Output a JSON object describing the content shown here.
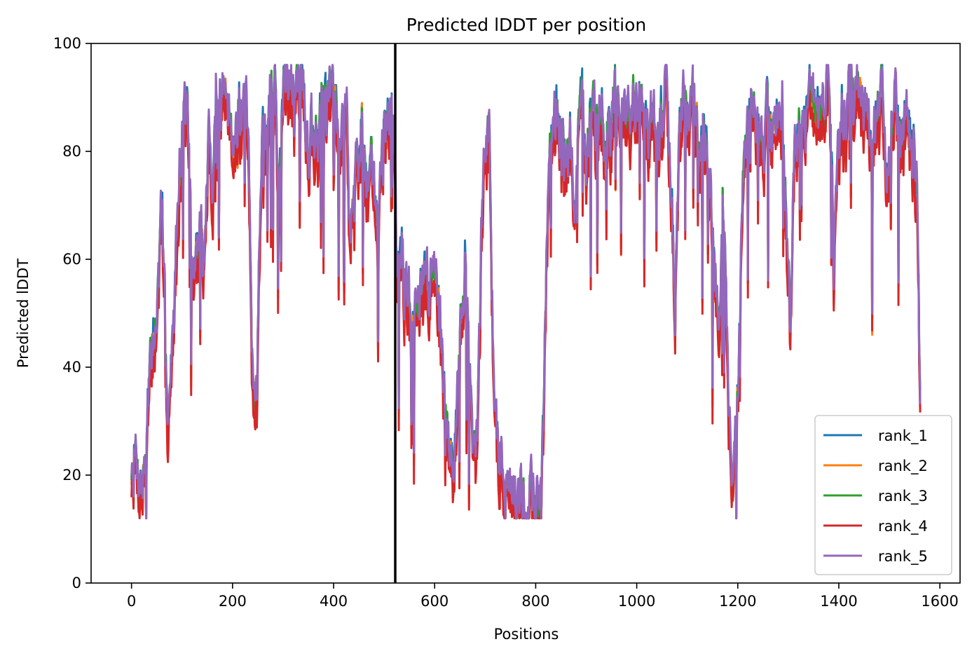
{
  "chart_data": {
    "type": "line",
    "title": "Predicted lDDT per position",
    "xlabel": "Positions",
    "ylabel": "Predicted lDDT",
    "xlim": [
      -80,
      1640
    ],
    "ylim": [
      0,
      100
    ],
    "xticks": [
      0,
      200,
      400,
      600,
      800,
      1000,
      1200,
      1400,
      1600
    ],
    "yticks": [
      0,
      20,
      40,
      60,
      80,
      100
    ],
    "vline_x": 522,
    "legend_position": "lower-right",
    "length": 1562,
    "profile": [
      [
        0,
        22
      ],
      [
        8,
        24
      ],
      [
        15,
        20
      ],
      [
        22,
        18
      ],
      [
        30,
        26
      ],
      [
        38,
        40
      ],
      [
        45,
        47
      ],
      [
        52,
        52
      ],
      [
        58,
        65
      ],
      [
        64,
        62
      ],
      [
        72,
        30
      ],
      [
        80,
        38
      ],
      [
        88,
        60
      ],
      [
        96,
        80
      ],
      [
        104,
        88
      ],
      [
        112,
        84
      ],
      [
        120,
        52
      ],
      [
        128,
        60
      ],
      [
        136,
        64
      ],
      [
        144,
        57
      ],
      [
        152,
        80
      ],
      [
        160,
        74
      ],
      [
        168,
        88
      ],
      [
        178,
        89
      ],
      [
        188,
        92
      ],
      [
        196,
        88
      ],
      [
        204,
        80
      ],
      [
        212,
        88
      ],
      [
        220,
        85
      ],
      [
        228,
        86
      ],
      [
        234,
        64
      ],
      [
        238,
        40
      ],
      [
        242,
        33
      ],
      [
        248,
        38
      ],
      [
        254,
        66
      ],
      [
        260,
        85
      ],
      [
        268,
        79
      ],
      [
        276,
        90
      ],
      [
        284,
        93
      ],
      [
        290,
        72
      ],
      [
        296,
        79
      ],
      [
        302,
        92
      ],
      [
        310,
        93
      ],
      [
        318,
        95
      ],
      [
        326,
        92
      ],
      [
        334,
        94
      ],
      [
        342,
        90
      ],
      [
        350,
        79
      ],
      [
        356,
        85
      ],
      [
        362,
        82
      ],
      [
        370,
        83
      ],
      [
        378,
        88
      ],
      [
        386,
        84
      ],
      [
        394,
        92
      ],
      [
        402,
        90
      ],
      [
        410,
        88
      ],
      [
        418,
        84
      ],
      [
        426,
        90
      ],
      [
        432,
        62
      ],
      [
        438,
        73
      ],
      [
        444,
        82
      ],
      [
        450,
        79
      ],
      [
        456,
        87
      ],
      [
        462,
        75
      ],
      [
        468,
        70
      ],
      [
        474,
        80
      ],
      [
        480,
        74
      ],
      [
        488,
        60
      ],
      [
        494,
        75
      ],
      [
        500,
        86
      ],
      [
        506,
        82
      ],
      [
        512,
        89
      ],
      [
        518,
        84
      ],
      [
        522,
        72
      ],
      [
        525,
        58
      ],
      [
        532,
        62
      ],
      [
        540,
        55
      ],
      [
        548,
        52
      ],
      [
        556,
        45
      ],
      [
        564,
        53
      ],
      [
        572,
        50
      ],
      [
        580,
        55
      ],
      [
        588,
        52
      ],
      [
        596,
        62
      ],
      [
        604,
        58
      ],
      [
        612,
        45
      ],
      [
        620,
        30
      ],
      [
        628,
        24
      ],
      [
        636,
        18
      ],
      [
        644,
        30
      ],
      [
        652,
        45
      ],
      [
        660,
        60
      ],
      [
        668,
        40
      ],
      [
        676,
        26
      ],
      [
        684,
        24
      ],
      [
        692,
        60
      ],
      [
        700,
        80
      ],
      [
        708,
        84
      ],
      [
        716,
        40
      ],
      [
        724,
        26
      ],
      [
        734,
        20
      ],
      [
        744,
        17
      ],
      [
        754,
        14
      ],
      [
        764,
        14
      ],
      [
        774,
        13
      ],
      [
        784,
        14
      ],
      [
        794,
        15
      ],
      [
        804,
        17
      ],
      [
        812,
        20
      ],
      [
        820,
        50
      ],
      [
        828,
        88
      ],
      [
        836,
        84
      ],
      [
        844,
        86
      ],
      [
        852,
        84
      ],
      [
        860,
        76
      ],
      [
        868,
        80
      ],
      [
        876,
        68
      ],
      [
        884,
        84
      ],
      [
        892,
        88
      ],
      [
        900,
        70
      ],
      [
        908,
        85
      ],
      [
        916,
        88
      ],
      [
        924,
        82
      ],
      [
        932,
        88
      ],
      [
        940,
        80
      ],
      [
        948,
        84
      ],
      [
        956,
        90
      ],
      [
        964,
        84
      ],
      [
        972,
        88
      ],
      [
        980,
        84
      ],
      [
        990,
        86
      ],
      [
        1000,
        90
      ],
      [
        1010,
        88
      ],
      [
        1020,
        86
      ],
      [
        1030,
        82
      ],
      [
        1040,
        80
      ],
      [
        1050,
        86
      ],
      [
        1060,
        88
      ],
      [
        1070,
        70
      ],
      [
        1076,
        52
      ],
      [
        1084,
        84
      ],
      [
        1092,
        88
      ],
      [
        1100,
        84
      ],
      [
        1108,
        90
      ],
      [
        1116,
        86
      ],
      [
        1124,
        80
      ],
      [
        1132,
        84
      ],
      [
        1140,
        80
      ],
      [
        1148,
        66
      ],
      [
        1156,
        54
      ],
      [
        1164,
        46
      ],
      [
        1170,
        70
      ],
      [
        1176,
        50
      ],
      [
        1182,
        30
      ],
      [
        1188,
        18
      ],
      [
        1196,
        25
      ],
      [
        1204,
        48
      ],
      [
        1210,
        80
      ],
      [
        1218,
        86
      ],
      [
        1226,
        82
      ],
      [
        1234,
        88
      ],
      [
        1242,
        84
      ],
      [
        1250,
        80
      ],
      [
        1258,
        86
      ],
      [
        1266,
        84
      ],
      [
        1274,
        90
      ],
      [
        1282,
        86
      ],
      [
        1290,
        88
      ],
      [
        1298,
        60
      ],
      [
        1304,
        46
      ],
      [
        1310,
        80
      ],
      [
        1318,
        84
      ],
      [
        1326,
        88
      ],
      [
        1334,
        84
      ],
      [
        1342,
        89
      ],
      [
        1350,
        86
      ],
      [
        1358,
        90
      ],
      [
        1366,
        86
      ],
      [
        1374,
        90
      ],
      [
        1382,
        92
      ],
      [
        1390,
        58
      ],
      [
        1398,
        84
      ],
      [
        1406,
        88
      ],
      [
        1414,
        86
      ],
      [
        1422,
        90
      ],
      [
        1430,
        86
      ],
      [
        1438,
        88
      ],
      [
        1446,
        84
      ],
      [
        1454,
        86
      ],
      [
        1462,
        80
      ],
      [
        1470,
        86
      ],
      [
        1478,
        84
      ],
      [
        1486,
        88
      ],
      [
        1494,
        74
      ],
      [
        1502,
        82
      ],
      [
        1510,
        88
      ],
      [
        1518,
        84
      ],
      [
        1526,
        82
      ],
      [
        1534,
        84
      ],
      [
        1542,
        80
      ],
      [
        1550,
        78
      ],
      [
        1556,
        70
      ],
      [
        1561,
        28
      ]
    ],
    "series": [
      {
        "name": "rank_1",
        "color": "#1f77b4",
        "seed": 11,
        "offset": 0.8
      },
      {
        "name": "rank_2",
        "color": "#ff7f0e",
        "seed": 23,
        "offset": -0.6
      },
      {
        "name": "rank_3",
        "color": "#2ca02c",
        "seed": 37,
        "offset": 0.2
      },
      {
        "name": "rank_4",
        "color": "#d62728",
        "seed": 51,
        "offset": -3.0
      },
      {
        "name": "rank_5",
        "color": "#9467bd",
        "seed": 67,
        "offset": 1.2
      }
    ]
  }
}
